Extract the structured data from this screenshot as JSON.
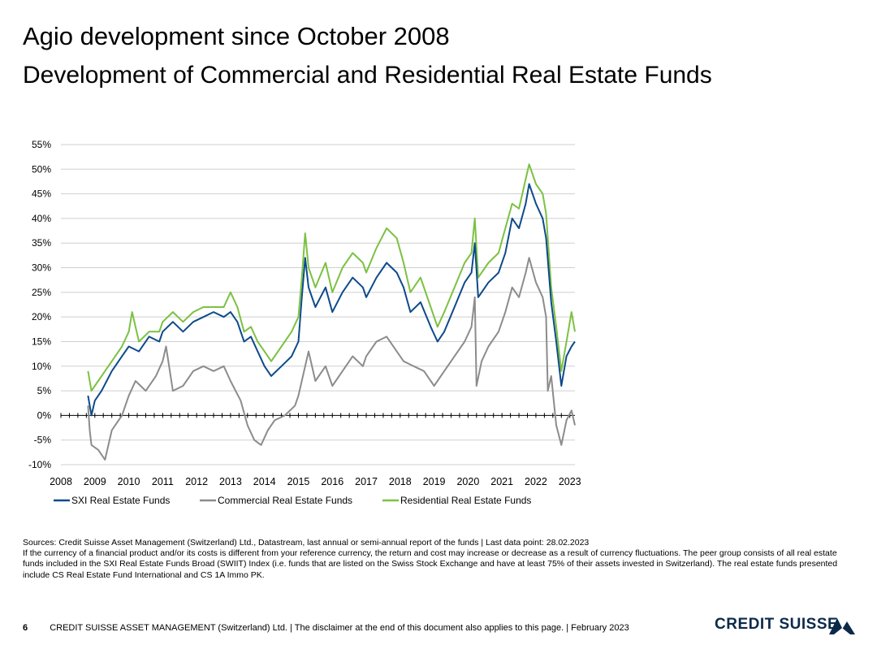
{
  "header": {
    "title": "Agio development since October 2008",
    "subtitle": "Development of Commercial and Residential Real Estate Funds"
  },
  "chart_data": {
    "type": "line",
    "title": "",
    "xlabel": "",
    "ylabel": "",
    "xlim": [
      2008,
      2023.15
    ],
    "ylim": [
      -10,
      55
    ],
    "x_ticks": [
      2008,
      2009,
      2010,
      2011,
      2012,
      2013,
      2014,
      2015,
      2016,
      2017,
      2018,
      2019,
      2020,
      2021,
      2022,
      2023
    ],
    "x_tick_labels": [
      "2008",
      "2009",
      "2010",
      "2011",
      "2012",
      "2013",
      "2014",
      "2015",
      "2016",
      "2017",
      "2018",
      "2019",
      "2020",
      "2021",
      "2022",
      "2023"
    ],
    "y_ticks": [
      -10,
      -5,
      0,
      5,
      10,
      15,
      20,
      25,
      30,
      35,
      40,
      45,
      50,
      55
    ],
    "y_tick_labels": [
      "-10%",
      "-5%",
      "0%",
      "5%",
      "10%",
      "15%",
      "20%",
      "25%",
      "30%",
      "35%",
      "40%",
      "45%",
      "50%",
      "55%"
    ],
    "legend_position": "bottom",
    "series": [
      {
        "name": "SXI Real Estate Funds",
        "color": "#0d4a8b",
        "points": [
          [
            2008.8,
            4
          ],
          [
            2008.9,
            0
          ],
          [
            2009.0,
            3
          ],
          [
            2009.2,
            5
          ],
          [
            2009.5,
            9
          ],
          [
            2009.8,
            12
          ],
          [
            2010.0,
            14
          ],
          [
            2010.3,
            13
          ],
          [
            2010.6,
            16
          ],
          [
            2010.9,
            15
          ],
          [
            2011.0,
            17
          ],
          [
            2011.3,
            19
          ],
          [
            2011.6,
            17
          ],
          [
            2011.9,
            19
          ],
          [
            2012.2,
            20
          ],
          [
            2012.5,
            21
          ],
          [
            2012.8,
            20
          ],
          [
            2013.0,
            21
          ],
          [
            2013.2,
            19
          ],
          [
            2013.4,
            15
          ],
          [
            2013.6,
            16
          ],
          [
            2013.8,
            13
          ],
          [
            2014.0,
            10
          ],
          [
            2014.2,
            8
          ],
          [
            2014.5,
            10
          ],
          [
            2014.8,
            12
          ],
          [
            2015.0,
            15
          ],
          [
            2015.1,
            24
          ],
          [
            2015.2,
            32
          ],
          [
            2015.3,
            26
          ],
          [
            2015.5,
            22
          ],
          [
            2015.8,
            26
          ],
          [
            2016.0,
            21
          ],
          [
            2016.3,
            25
          ],
          [
            2016.6,
            28
          ],
          [
            2016.9,
            26
          ],
          [
            2017.0,
            24
          ],
          [
            2017.3,
            28
          ],
          [
            2017.6,
            31
          ],
          [
            2017.9,
            29
          ],
          [
            2018.1,
            26
          ],
          [
            2018.3,
            21
          ],
          [
            2018.6,
            23
          ],
          [
            2018.9,
            18
          ],
          [
            2019.1,
            15
          ],
          [
            2019.3,
            17
          ],
          [
            2019.6,
            22
          ],
          [
            2019.9,
            27
          ],
          [
            2020.1,
            29
          ],
          [
            2020.2,
            35
          ],
          [
            2020.3,
            24
          ],
          [
            2020.6,
            27
          ],
          [
            2020.9,
            29
          ],
          [
            2021.1,
            33
          ],
          [
            2021.3,
            40
          ],
          [
            2021.5,
            38
          ],
          [
            2021.7,
            43
          ],
          [
            2021.8,
            47
          ],
          [
            2022.0,
            43
          ],
          [
            2022.2,
            40
          ],
          [
            2022.3,
            36
          ],
          [
            2022.45,
            23
          ],
          [
            2022.6,
            15
          ],
          [
            2022.75,
            6
          ],
          [
            2022.9,
            12
          ],
          [
            2023.05,
            14
          ],
          [
            2023.15,
            15
          ]
        ]
      },
      {
        "name": "Commercial Real Estate Funds",
        "color": "#8c8c8c",
        "points": [
          [
            2008.8,
            2
          ],
          [
            2008.85,
            -3
          ],
          [
            2008.9,
            -6
          ],
          [
            2009.1,
            -7
          ],
          [
            2009.3,
            -9
          ],
          [
            2009.5,
            -3
          ],
          [
            2009.8,
            0
          ],
          [
            2010.0,
            4
          ],
          [
            2010.2,
            7
          ],
          [
            2010.5,
            5
          ],
          [
            2010.8,
            8
          ],
          [
            2011.0,
            11
          ],
          [
            2011.1,
            14
          ],
          [
            2011.3,
            5
          ],
          [
            2011.6,
            6
          ],
          [
            2011.9,
            9
          ],
          [
            2012.2,
            10
          ],
          [
            2012.5,
            9
          ],
          [
            2012.8,
            10
          ],
          [
            2013.0,
            7
          ],
          [
            2013.3,
            3
          ],
          [
            2013.5,
            -2
          ],
          [
            2013.7,
            -5
          ],
          [
            2013.9,
            -6
          ],
          [
            2014.1,
            -3
          ],
          [
            2014.3,
            -1
          ],
          [
            2014.6,
            0
          ],
          [
            2014.9,
            2
          ],
          [
            2015.0,
            4
          ],
          [
            2015.2,
            10
          ],
          [
            2015.3,
            13
          ],
          [
            2015.5,
            7
          ],
          [
            2015.8,
            10
          ],
          [
            2016.0,
            6
          ],
          [
            2016.3,
            9
          ],
          [
            2016.6,
            12
          ],
          [
            2016.9,
            10
          ],
          [
            2017.0,
            12
          ],
          [
            2017.3,
            15
          ],
          [
            2017.6,
            16
          ],
          [
            2017.9,
            13
          ],
          [
            2018.1,
            11
          ],
          [
            2018.4,
            10
          ],
          [
            2018.7,
            9
          ],
          [
            2019.0,
            6
          ],
          [
            2019.3,
            9
          ],
          [
            2019.6,
            12
          ],
          [
            2019.9,
            15
          ],
          [
            2020.1,
            18
          ],
          [
            2020.2,
            24
          ],
          [
            2020.25,
            6
          ],
          [
            2020.4,
            11
          ],
          [
            2020.6,
            14
          ],
          [
            2020.9,
            17
          ],
          [
            2021.1,
            21
          ],
          [
            2021.3,
            26
          ],
          [
            2021.5,
            24
          ],
          [
            2021.7,
            29
          ],
          [
            2021.8,
            32
          ],
          [
            2022.0,
            27
          ],
          [
            2022.2,
            24
          ],
          [
            2022.3,
            20
          ],
          [
            2022.35,
            5
          ],
          [
            2022.45,
            8
          ],
          [
            2022.6,
            -2
          ],
          [
            2022.75,
            -6
          ],
          [
            2022.9,
            -1
          ],
          [
            2023.05,
            1
          ],
          [
            2023.15,
            -2
          ]
        ]
      },
      {
        "name": "Residential Real Estate Funds",
        "color": "#7cc142",
        "points": [
          [
            2008.8,
            9
          ],
          [
            2008.9,
            5
          ],
          [
            2009.0,
            6
          ],
          [
            2009.2,
            8
          ],
          [
            2009.5,
            11
          ],
          [
            2009.8,
            14
          ],
          [
            2010.0,
            17
          ],
          [
            2010.1,
            21
          ],
          [
            2010.3,
            15
          ],
          [
            2010.6,
            17
          ],
          [
            2010.9,
            17
          ],
          [
            2011.0,
            19
          ],
          [
            2011.3,
            21
          ],
          [
            2011.6,
            19
          ],
          [
            2011.9,
            21
          ],
          [
            2012.2,
            22
          ],
          [
            2012.5,
            22
          ],
          [
            2012.8,
            22
          ],
          [
            2013.0,
            25
          ],
          [
            2013.2,
            22
          ],
          [
            2013.4,
            17
          ],
          [
            2013.6,
            18
          ],
          [
            2013.8,
            15
          ],
          [
            2014.0,
            13
          ],
          [
            2014.2,
            11
          ],
          [
            2014.5,
            14
          ],
          [
            2014.8,
            17
          ],
          [
            2015.0,
            20
          ],
          [
            2015.1,
            28
          ],
          [
            2015.2,
            37
          ],
          [
            2015.3,
            30
          ],
          [
            2015.5,
            26
          ],
          [
            2015.8,
            31
          ],
          [
            2016.0,
            25
          ],
          [
            2016.3,
            30
          ],
          [
            2016.6,
            33
          ],
          [
            2016.9,
            31
          ],
          [
            2017.0,
            29
          ],
          [
            2017.3,
            34
          ],
          [
            2017.6,
            38
          ],
          [
            2017.9,
            36
          ],
          [
            2018.1,
            31
          ],
          [
            2018.3,
            25
          ],
          [
            2018.6,
            28
          ],
          [
            2018.9,
            22
          ],
          [
            2019.1,
            18
          ],
          [
            2019.3,
            21
          ],
          [
            2019.6,
            26
          ],
          [
            2019.9,
            31
          ],
          [
            2020.1,
            33
          ],
          [
            2020.2,
            40
          ],
          [
            2020.3,
            28
          ],
          [
            2020.6,
            31
          ],
          [
            2020.9,
            33
          ],
          [
            2021.1,
            38
          ],
          [
            2021.3,
            43
          ],
          [
            2021.5,
            42
          ],
          [
            2021.7,
            48
          ],
          [
            2021.8,
            51
          ],
          [
            2022.0,
            47
          ],
          [
            2022.2,
            45
          ],
          [
            2022.3,
            41
          ],
          [
            2022.45,
            26
          ],
          [
            2022.6,
            18
          ],
          [
            2022.75,
            9
          ],
          [
            2022.9,
            15
          ],
          [
            2023.05,
            21
          ],
          [
            2023.15,
            17
          ]
        ]
      }
    ]
  },
  "sources": {
    "line1": "Sources: Credit Suisse Asset Management (Switzerland) Ltd., Datastream, last annual or semi-annual report of the funds | Last data point: 28.02.2023",
    "line2": "If the currency of a financial product and/or its costs is different from your reference currency, the return and cost may increase or decrease as a result of currency fluctuations. The peer group consists of all real estate funds included in the SXI Real Estate Funds Broad (SWIIT) Index (i.e. funds that are listed on the Swiss Stock Exchange and have at least 75% of their assets invested in Switzerland). The real estate funds presented include CS Real Estate Fund International and CS 1A Immo PK."
  },
  "footer": {
    "page_number": "6",
    "text": "CREDIT SUISSE ASSET MANAGEMENT (Switzerland) Ltd. | The disclaimer at the end of this document also applies to this page. | February 2023",
    "logo": "CREDIT SUISSE"
  }
}
